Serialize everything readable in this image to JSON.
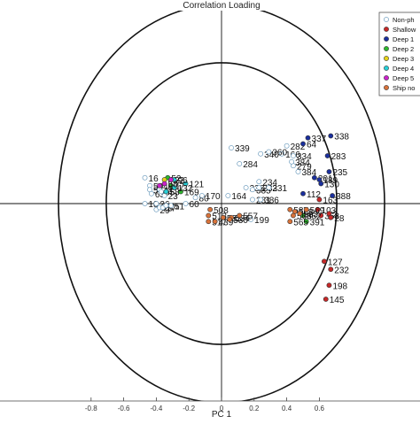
{
  "chart_data": {
    "type": "scatter",
    "title": "Correlation Loading",
    "xlabel": "PC 1",
    "ylabel": "",
    "xlim": [
      -0.87,
      0.7
    ],
    "ylim": [
      -1.0,
      0.9
    ],
    "x_ticks": [
      "-0.8",
      "-0.6",
      "-0.4",
      "-0.2",
      "0",
      "0.2",
      "0.4",
      "0.6"
    ],
    "x_tick_values": [
      -0.8,
      -0.6,
      -0.4,
      -0.2,
      0,
      0.2,
      0.4,
      0.6
    ],
    "circles": [
      {
        "radius": 1.0
      },
      {
        "radius": 0.7071
      }
    ],
    "zero_lines": true,
    "grid": false,
    "legend_position": "top-right",
    "series": [
      {
        "name": "Non-ph",
        "color": "#ffffff",
        "edge": "#5a8fb5",
        "points": [
          {
            "x": -0.47,
            "y": 0.13,
            "label": "16"
          },
          {
            "x": -0.44,
            "y": 0.09,
            "label": "50"
          },
          {
            "x": -0.44,
            "y": 0.07,
            "label": "57"
          },
          {
            "x": -0.43,
            "y": 0.05,
            "label": "63"
          },
          {
            "x": -0.47,
            "y": 0.0,
            "label": "18"
          },
          {
            "x": -0.4,
            "y": 0.0,
            "label": "26"
          },
          {
            "x": -0.4,
            "y": -0.03,
            "label": "29"
          },
          {
            "x": -0.38,
            "y": 0.07,
            "label": "44"
          },
          {
            "x": -0.37,
            "y": 0.06,
            "label": "55"
          },
          {
            "x": -0.38,
            "y": -0.02,
            "label": "25"
          },
          {
            "x": -0.36,
            "y": -0.02,
            "label": "27"
          },
          {
            "x": -0.34,
            "y": -0.01,
            "label": "21"
          },
          {
            "x": -0.31,
            "y": -0.01,
            "label": "51"
          },
          {
            "x": -0.22,
            "y": 0.0,
            "label": "60"
          },
          {
            "x": -0.35,
            "y": 0.04,
            "label": "23"
          },
          {
            "x": -0.16,
            "y": 0.03,
            "label": "80"
          },
          {
            "x": -0.12,
            "y": 0.04,
            "label": "170"
          },
          {
            "x": 0.04,
            "y": 0.04,
            "label": "164"
          },
          {
            "x": 0.15,
            "y": 0.08,
            "label": "236"
          },
          {
            "x": 0.19,
            "y": 0.07,
            "label": "385"
          },
          {
            "x": 0.23,
            "y": 0.11,
            "label": "234"
          },
          {
            "x": 0.23,
            "y": 0.08,
            "label": "233"
          },
          {
            "x": 0.19,
            "y": 0.02,
            "label": "281"
          },
          {
            "x": 0.24,
            "y": 0.02,
            "label": "386"
          },
          {
            "x": 0.29,
            "y": 0.08,
            "label": "231"
          },
          {
            "x": 0.11,
            "y": 0.2,
            "label": "284"
          },
          {
            "x": 0.06,
            "y": 0.28,
            "label": "339"
          },
          {
            "x": 0.24,
            "y": 0.25,
            "label": "340"
          },
          {
            "x": 0.37,
            "y": 0.25,
            "label": "166"
          },
          {
            "x": 0.29,
            "y": 0.26,
            "label": "360"
          },
          {
            "x": 0.4,
            "y": 0.29,
            "label": "282"
          },
          {
            "x": 0.44,
            "y": 0.24,
            "label": "334"
          },
          {
            "x": 0.44,
            "y": 0.19,
            "label": "279"
          },
          {
            "x": 0.47,
            "y": 0.16,
            "label": "384"
          },
          {
            "x": 0.43,
            "y": 0.21,
            "label": "384"
          },
          {
            "x": 0.18,
            "y": -0.08,
            "label": "199"
          }
        ]
      },
      {
        "name": "Shallow",
        "color": "#c62828",
        "points": [
          {
            "x": 0.6,
            "y": 0.02,
            "label": "163"
          },
          {
            "x": 0.59,
            "y": -0.03,
            "label": "103"
          },
          {
            "x": 0.61,
            "y": -0.06,
            "label": "363"
          },
          {
            "x": 0.66,
            "y": -0.05,
            "label": "2"
          },
          {
            "x": 0.67,
            "y": -0.07,
            "label": "28"
          },
          {
            "x": 0.63,
            "y": -0.29,
            "label": "127"
          },
          {
            "x": 0.67,
            "y": -0.33,
            "label": "232"
          },
          {
            "x": 0.66,
            "y": -0.41,
            "label": "198"
          },
          {
            "x": 0.64,
            "y": -0.48,
            "label": "145"
          }
        ]
      },
      {
        "name": "Deep 1",
        "color": "#1a2f9e",
        "points": [
          {
            "x": 0.67,
            "y": 0.34,
            "label": "338"
          },
          {
            "x": 0.53,
            "y": 0.33,
            "label": "337"
          },
          {
            "x": 0.5,
            "y": 0.3,
            "label": "64"
          },
          {
            "x": 0.65,
            "y": 0.24,
            "label": "283"
          },
          {
            "x": 0.66,
            "y": 0.16,
            "label": "235"
          },
          {
            "x": 0.57,
            "y": 0.13,
            "label": "201"
          },
          {
            "x": 0.6,
            "y": 0.12,
            "label": "189"
          },
          {
            "x": 0.61,
            "y": 0.1,
            "label": "130"
          },
          {
            "x": 0.5,
            "y": 0.05,
            "label": "112"
          },
          {
            "x": 0.68,
            "y": 0.04,
            "label": "388"
          }
        ]
      },
      {
        "name": "Deep 2",
        "color": "#2eb82e",
        "points": [
          {
            "x": -0.33,
            "y": 0.13,
            "label": "52"
          },
          {
            "x": -0.25,
            "y": 0.06,
            "label": "169"
          },
          {
            "x": -0.31,
            "y": 0.09,
            "label": "47"
          },
          {
            "x": 0.52,
            "y": -0.09,
            "label": "391"
          },
          {
            "x": 0.5,
            "y": -0.06,
            "label": "362"
          }
        ]
      },
      {
        "name": "Deep 3",
        "color": "#e6d21a",
        "points": [
          {
            "x": -0.35,
            "y": 0.12,
            "label": "41"
          }
        ]
      },
      {
        "name": "Deep 4",
        "color": "#27d0d8",
        "points": [
          {
            "x": -0.22,
            "y": 0.1,
            "label": "121"
          },
          {
            "x": -0.29,
            "y": 0.12,
            "label": "96"
          },
          {
            "x": -0.29,
            "y": 0.08,
            "label": "132"
          },
          {
            "x": -0.34,
            "y": 0.06,
            "label": "58"
          }
        ]
      },
      {
        "name": "Deep 5",
        "color": "#cc22cc",
        "points": [
          {
            "x": -0.38,
            "y": 0.09,
            "label": "48"
          },
          {
            "x": -0.35,
            "y": 0.1,
            "label": "58"
          },
          {
            "x": -0.31,
            "y": 0.12,
            "label": "22"
          }
        ]
      },
      {
        "name": "Ship no",
        "color": "#d9733a",
        "points": [
          {
            "x": -0.07,
            "y": -0.03,
            "label": "508"
          },
          {
            "x": -0.08,
            "y": -0.06,
            "label": "513"
          },
          {
            "x": -0.08,
            "y": -0.09,
            "label": "517"
          },
          {
            "x": 0.01,
            "y": -0.07,
            "label": "533"
          },
          {
            "x": 0.06,
            "y": -0.07,
            "label": "534"
          },
          {
            "x": -0.04,
            "y": -0.09,
            "label": "439"
          },
          {
            "x": 0.05,
            "y": -0.08,
            "label": "530"
          },
          {
            "x": 0.11,
            "y": -0.06,
            "label": "557"
          },
          {
            "x": 0.42,
            "y": -0.03,
            "label": "587"
          },
          {
            "x": 0.45,
            "y": -0.04,
            "label": "568"
          },
          {
            "x": 0.44,
            "y": -0.06,
            "label": "566"
          },
          {
            "x": 0.42,
            "y": -0.09,
            "label": "565"
          },
          {
            "x": 0.48,
            "y": -0.05,
            "label": "583"
          },
          {
            "x": 0.52,
            "y": -0.03,
            "label": "569"
          }
        ]
      }
    ]
  }
}
